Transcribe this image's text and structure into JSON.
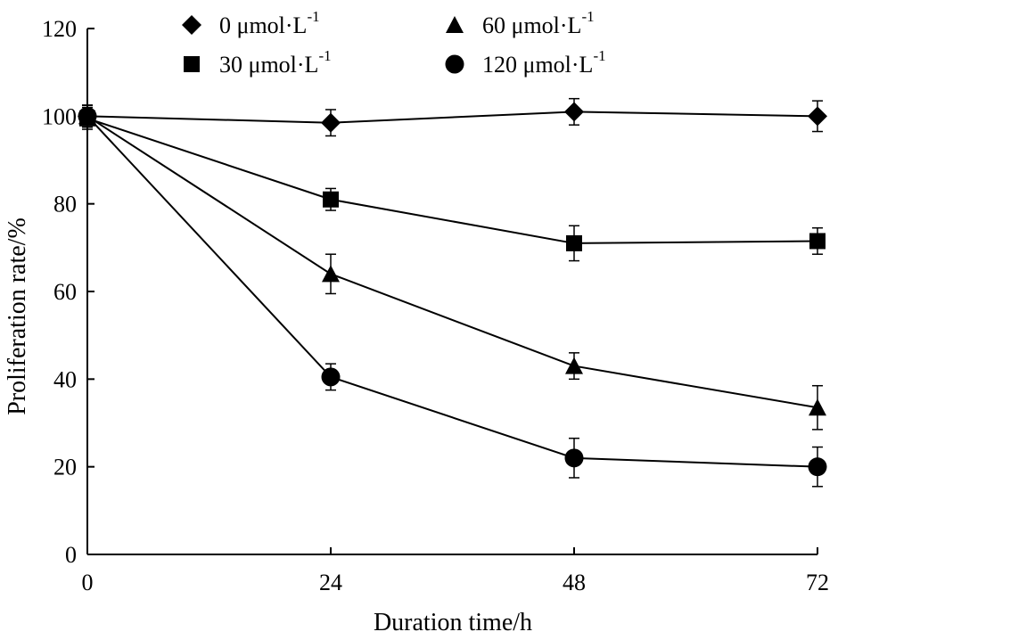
{
  "chart_data": {
    "type": "line",
    "title": "",
    "xlabel": "Duration time/h",
    "ylabel": "Proliferation rate/%",
    "x": [
      0,
      24,
      48,
      72
    ],
    "xlim": [
      0,
      72
    ],
    "ylim": [
      0,
      120
    ],
    "xticks": [
      "0",
      "24",
      "48",
      "72"
    ],
    "yticks": [
      "0",
      "20",
      "40",
      "60",
      "80",
      "100",
      "120"
    ],
    "grid": false,
    "legend_position": "top",
    "series": [
      {
        "name": "0 μmol·L",
        "unit_superscript": "-1",
        "marker": "diamond",
        "values": [
          100,
          98.5,
          101,
          100
        ],
        "errors": [
          2.5,
          3,
          3,
          3.5
        ]
      },
      {
        "name": "30 μmol·L",
        "unit_superscript": "-1",
        "marker": "square",
        "values": [
          99.5,
          81,
          71,
          71.5
        ],
        "errors": [
          2.5,
          2.5,
          4,
          3
        ]
      },
      {
        "name": "60 μmol·L",
        "unit_superscript": "-1",
        "marker": "triangle",
        "values": [
          100,
          64,
          43,
          33.5
        ],
        "errors": [
          2.5,
          4.5,
          3,
          5
        ]
      },
      {
        "name": "120 μmol·L",
        "unit_superscript": "-1",
        "marker": "circle",
        "values": [
          100,
          40.5,
          22,
          20
        ],
        "errors": [
          2.5,
          3,
          4.5,
          4.5
        ]
      }
    ]
  }
}
